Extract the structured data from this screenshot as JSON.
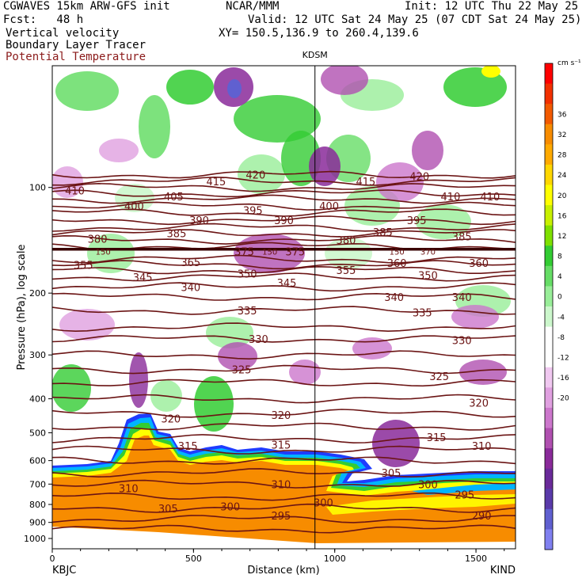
{
  "header": {
    "line1_left": "CGWAVES 15km ARW-GFS init",
    "line1_mid": "NCAR/MMM",
    "line1_right": "Init: 12 UTC Thu 22 May 25",
    "line2_left": "Fcst:   48 h",
    "line2_right": "Valid: 12 UTC Sat 24 May 25 (07 CDT Sat 24 May 25)",
    "line3_left": "Vertical velocity",
    "line3_right": "XY= 150.5,136.9 to 260.4,139.6",
    "line4_left": "Boundary Layer Tracer",
    "line5_left": "Potential Temperature"
  },
  "colors": {
    "contour_line": "#6b1414",
    "tracer_fill": "#f78c00",
    "tropopause_line": "#3a0505"
  },
  "chart_data": {
    "type": "heatmap",
    "xlabel": "Distance (km)",
    "ylabel": "Pressure (hPa), log scale",
    "x_ticks": [
      0,
      500,
      1000,
      1500
    ],
    "xlim": [
      0,
      1640
    ],
    "y_ticks": [
      100,
      200,
      300,
      400,
      500,
      600,
      700,
      800,
      900,
      1000
    ],
    "y_scale": "log",
    "station_left": "KBJC",
    "station_right": "KIND",
    "station_top": "KDSM",
    "station_top_x_km": 930,
    "colorbar": {
      "unit": "cm s⁻¹",
      "tick_labels": [
        "36",
        "32",
        "28",
        "24",
        "20",
        "16",
        "12",
        "8",
        "4",
        "0",
        "-4",
        "-8",
        "-12",
        "-16",
        "-20"
      ],
      "colors": [
        "#ff0000",
        "#f23000",
        "#f25a00",
        "#f78c00",
        "#ffaa00",
        "#ffd700",
        "#ffff00",
        "#c8f000",
        "#7fe000",
        "#33cc33",
        "#66dd66",
        "#99ee99",
        "#ccf7cc",
        "#ffffff",
        "#ffffff",
        "#f0c8f0",
        "#e0a0e0",
        "#cc77cc",
        "#b050b0",
        "#8a2a9a",
        "#6a2a9a",
        "#5a3aaa",
        "#6060d0",
        "#8080f0"
      ]
    },
    "contour_labels": [
      {
        "text": "410",
        "x_km": 80,
        "p": 102
      },
      {
        "text": "400",
        "x_km": 290,
        "p": 113
      },
      {
        "text": "405",
        "x_km": 430,
        "p": 106
      },
      {
        "text": "415",
        "x_km": 580,
        "p": 96
      },
      {
        "text": "420",
        "x_km": 720,
        "p": 92
      },
      {
        "text": "395",
        "x_km": 710,
        "p": 116
      },
      {
        "text": "390",
        "x_km": 520,
        "p": 124
      },
      {
        "text": "390",
        "x_km": 820,
        "p": 124
      },
      {
        "text": "385",
        "x_km": 440,
        "p": 135
      },
      {
        "text": "380",
        "x_km": 160,
        "p": 140
      },
      {
        "text": "375",
        "x_km": 680,
        "p": 152
      },
      {
        "text": "375",
        "x_km": 860,
        "p": 152
      },
      {
        "text": "365",
        "x_km": 490,
        "p": 163
      },
      {
        "text": "355",
        "x_km": 110,
        "p": 166
      },
      {
        "text": "345",
        "x_km": 320,
        "p": 180
      },
      {
        "text": "340",
        "x_km": 490,
        "p": 192
      },
      {
        "text": "350",
        "x_km": 690,
        "p": 176
      },
      {
        "text": "345",
        "x_km": 830,
        "p": 187
      },
      {
        "text": "335",
        "x_km": 690,
        "p": 224
      },
      {
        "text": "330",
        "x_km": 730,
        "p": 270
      },
      {
        "text": "325",
        "x_km": 670,
        "p": 330
      },
      {
        "text": "320",
        "x_km": 420,
        "p": 455
      },
      {
        "text": "320",
        "x_km": 810,
        "p": 445
      },
      {
        "text": "315",
        "x_km": 480,
        "p": 545
      },
      {
        "text": "315",
        "x_km": 810,
        "p": 540
      },
      {
        "text": "310",
        "x_km": 270,
        "p": 720
      },
      {
        "text": "310",
        "x_km": 810,
        "p": 700
      },
      {
        "text": "305",
        "x_km": 410,
        "p": 820
      },
      {
        "text": "300",
        "x_km": 630,
        "p": 810
      },
      {
        "text": "300",
        "x_km": 960,
        "p": 790
      },
      {
        "text": "295",
        "x_km": 810,
        "p": 860
      },
      {
        "text": "400",
        "x_km": 980,
        "p": 113
      },
      {
        "text": "415",
        "x_km": 1110,
        "p": 96
      },
      {
        "text": "420",
        "x_km": 1300,
        "p": 93
      },
      {
        "text": "410",
        "x_km": 1410,
        "p": 106
      },
      {
        "text": "410",
        "x_km": 1550,
        "p": 106
      },
      {
        "text": "395",
        "x_km": 1290,
        "p": 124
      },
      {
        "text": "385",
        "x_km": 1170,
        "p": 134
      },
      {
        "text": "385",
        "x_km": 1450,
        "p": 138
      },
      {
        "text": "380",
        "x_km": 1040,
        "p": 141
      },
      {
        "text": "360",
        "x_km": 1220,
        "p": 164
      },
      {
        "text": "360",
        "x_km": 1510,
        "p": 164
      },
      {
        "text": "355",
        "x_km": 1040,
        "p": 172
      },
      {
        "text": "350",
        "x_km": 1330,
        "p": 178
      },
      {
        "text": "340",
        "x_km": 1210,
        "p": 205
      },
      {
        "text": "340",
        "x_km": 1450,
        "p": 205
      },
      {
        "text": "335",
        "x_km": 1310,
        "p": 227
      },
      {
        "text": "330",
        "x_km": 1450,
        "p": 272
      },
      {
        "text": "325",
        "x_km": 1370,
        "p": 345
      },
      {
        "text": "320",
        "x_km": 1510,
        "p": 410
      },
      {
        "text": "315",
        "x_km": 1360,
        "p": 515
      },
      {
        "text": "310",
        "x_km": 1520,
        "p": 545
      },
      {
        "text": "305",
        "x_km": 1200,
        "p": 650
      },
      {
        "text": "300",
        "x_km": 1330,
        "p": 700
      },
      {
        "text": "295",
        "x_km": 1460,
        "p": 750
      },
      {
        "text": "290",
        "x_km": 1520,
        "p": 860
      }
    ],
    "inline_labels": [
      {
        "text": "150",
        "x_km": 180,
        "p": 152
      },
      {
        "text": "150",
        "x_km": 770,
        "p": 152
      },
      {
        "text": "150",
        "x_km": 1220,
        "p": 152
      },
      {
        "text": "370",
        "x_km": 1330,
        "p": 152
      }
    ]
  }
}
